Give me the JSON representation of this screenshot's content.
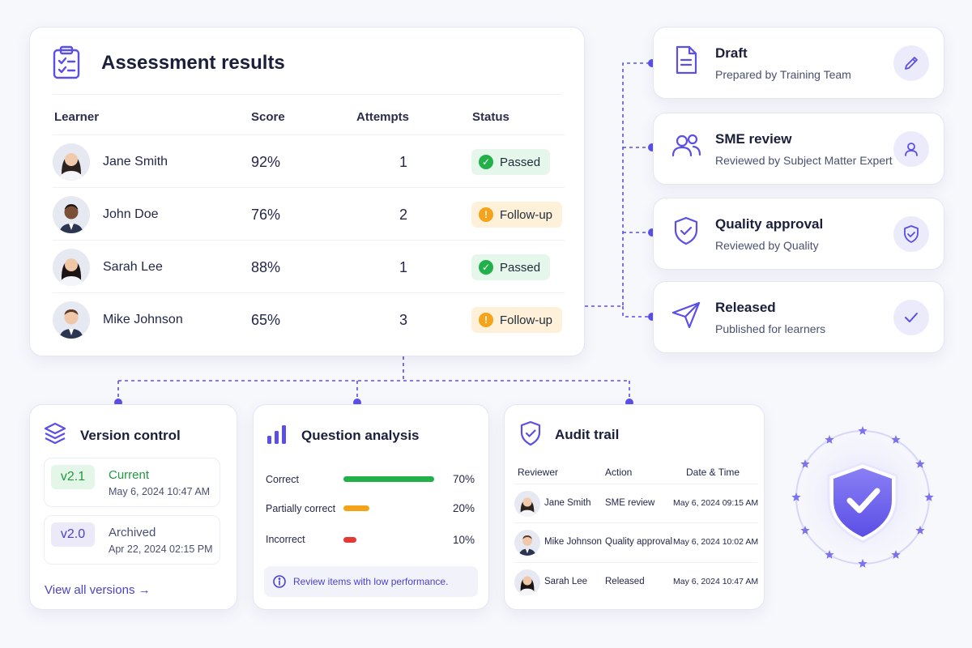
{
  "results": {
    "title": "Assessment results",
    "columns": {
      "learner": "Learner",
      "score": "Score",
      "attempts": "Attempts",
      "status": "Status"
    },
    "rows": [
      {
        "name": "Jane Smith",
        "score": "92%",
        "attempts": "1",
        "status": "Passed",
        "status_type": "passed"
      },
      {
        "name": "John Doe",
        "score": "76%",
        "attempts": "2",
        "status": "Follow-up",
        "status_type": "follow"
      },
      {
        "name": "Sarah Lee",
        "score": "88%",
        "attempts": "1",
        "status": "Passed",
        "status_type": "passed"
      },
      {
        "name": "Mike Johnson",
        "score": "65%",
        "attempts": "3",
        "status": "Follow-up",
        "status_type": "follow"
      }
    ]
  },
  "workflow": [
    {
      "title": "Draft",
      "subtitle": "Prepared by Training Team",
      "icon": "document-icon",
      "action_icon": "pencil-icon"
    },
    {
      "title": "SME review",
      "subtitle": "Reviewed by Subject Matter Expert",
      "icon": "users-icon",
      "action_icon": "user-icon"
    },
    {
      "title": "Quality approval",
      "subtitle": "Reviewed by Quality",
      "icon": "shield-check-icon",
      "action_icon": "shield-check-icon"
    },
    {
      "title": "Released",
      "subtitle": "Published for learners",
      "icon": "send-icon",
      "action_icon": "check-icon"
    }
  ],
  "version_control": {
    "title": "Version control",
    "versions": [
      {
        "tag": "v2.1",
        "state": "Current",
        "date": "May 6, 2024  10:47 AM"
      },
      {
        "tag": "v2.0",
        "state": "Archived",
        "date": "Apr 22, 2024  02:15 PM"
      }
    ],
    "view_all": "View all versions →"
  },
  "question_analysis": {
    "title": "Question analysis",
    "items": [
      {
        "label": "Correct",
        "value": 70,
        "pct": "70%",
        "color": "#22b04b"
      },
      {
        "label": "Partially correct",
        "value": 20,
        "pct": "20%",
        "color": "#f4a31b"
      },
      {
        "label": "Incorrect",
        "value": 10,
        "pct": "10%",
        "color": "#e53935"
      }
    ],
    "hint": "Review items with low performance."
  },
  "audit_trail": {
    "title": "Audit trail",
    "columns": {
      "reviewer": "Reviewer",
      "action": "Action",
      "datetime": "Date & Time"
    },
    "rows": [
      {
        "reviewer": "Jane Smith",
        "action": "SME review",
        "datetime": "May 6, 2024   09:15 AM"
      },
      {
        "reviewer": "Mike Johnson",
        "action": "Quality approval",
        "datetime": "May 6, 2024   10:02 AM"
      },
      {
        "reviewer": "Sarah Lee",
        "action": "Released",
        "datetime": "May 6, 2024   10:47 AM"
      }
    ]
  },
  "colors": {
    "accent": "#5b4fe6",
    "passed": "#22b04b",
    "follow_up": "#f4a31b",
    "incorrect": "#e53935"
  }
}
